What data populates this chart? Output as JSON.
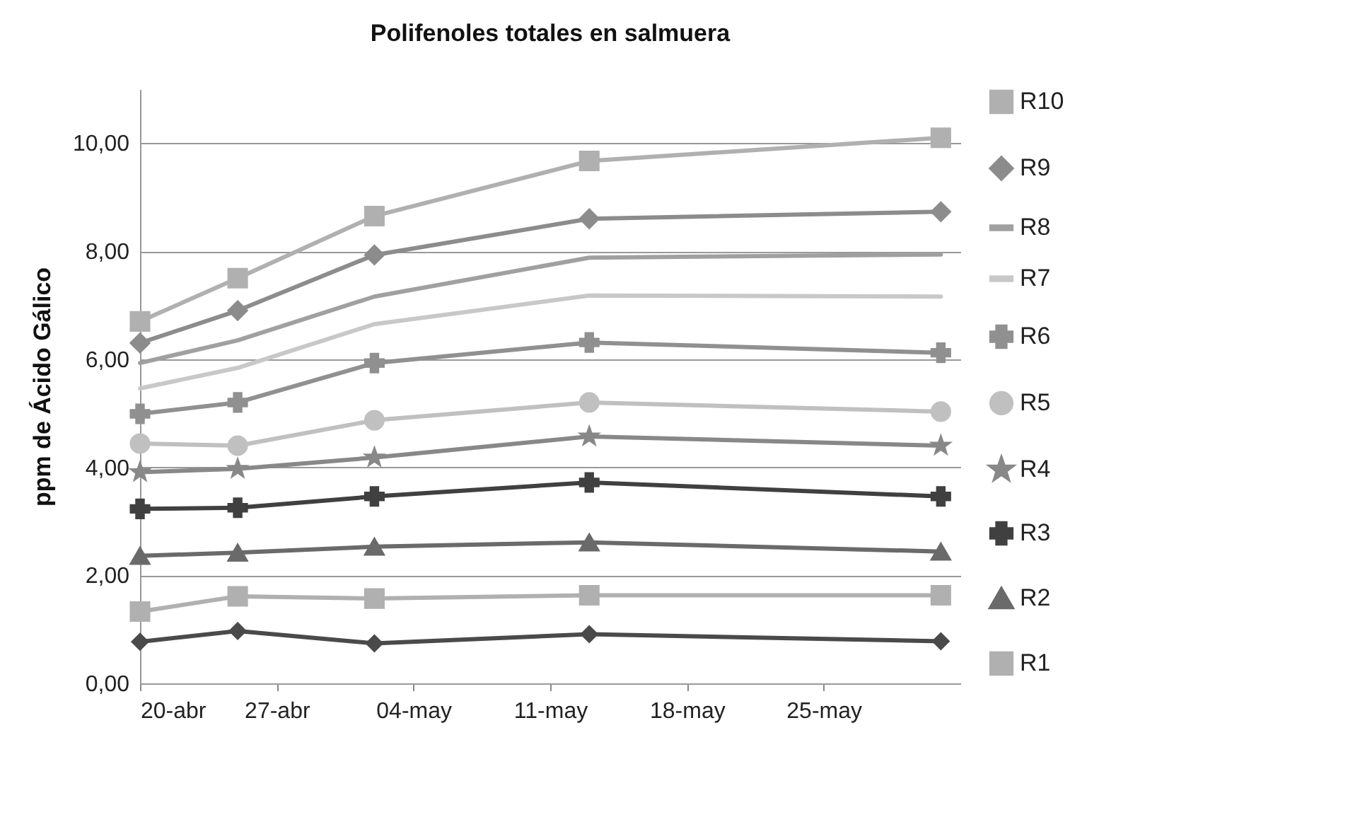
{
  "chart_data": {
    "type": "line",
    "title": "Polifenoles  totales en salmuera",
    "ylabel": "ppm de Ácido Gálico",
    "x": [
      "--04-20",
      "--04-25",
      "--05-02",
      "--05-13",
      "--05-31"
    ],
    "xlim": [
      "--04-20",
      "--06-01"
    ],
    "xticks": [
      {
        "value": "--04-20",
        "label": "20-abr"
      },
      {
        "value": "--04-27",
        "label": "27-abr"
      },
      {
        "value": "--05-04",
        "label": "04-may"
      },
      {
        "value": "--05-11",
        "label": "11-may"
      },
      {
        "value": "--05-18",
        "label": "18-may"
      },
      {
        "value": "--05-25",
        "label": "25-may"
      }
    ],
    "ylim": [
      0,
      11
    ],
    "yticks": [
      {
        "value": 0,
        "label": "0,00"
      },
      {
        "value": 2,
        "label": "2,00"
      },
      {
        "value": 4,
        "label": "4,00"
      },
      {
        "value": 6,
        "label": "6,00"
      },
      {
        "value": 8,
        "label": "8,00"
      },
      {
        "value": 10,
        "label": "10,00"
      }
    ],
    "grid": "y",
    "legend": "right",
    "series": [
      {
        "name": "R10",
        "color": "#b0b0b0",
        "marker": "square",
        "values": [
          6.7,
          7.5,
          8.65,
          9.67,
          10.1
        ]
      },
      {
        "name": "R9",
        "color": "#8c8c8c",
        "marker": "diamond",
        "values": [
          6.3,
          6.9,
          7.93,
          8.6,
          8.73
        ]
      },
      {
        "name": "R8",
        "color": "#a0a0a0",
        "marker": "none",
        "values": [
          5.93,
          6.35,
          7.16,
          7.88,
          7.94
        ]
      },
      {
        "name": "R7",
        "color": "#c8c8c8",
        "marker": "none",
        "values": [
          5.46,
          5.84,
          6.65,
          7.18,
          7.16
        ]
      },
      {
        "name": "R6",
        "color": "#909090",
        "marker": "cross",
        "values": [
          4.99,
          5.2,
          5.93,
          6.31,
          6.12
        ]
      },
      {
        "name": "R5",
        "color": "#c0c0c0",
        "marker": "circle",
        "values": [
          4.44,
          4.4,
          4.87,
          5.2,
          5.03
        ]
      },
      {
        "name": "R4",
        "color": "#888888",
        "marker": "star",
        "values": [
          3.91,
          3.97,
          4.18,
          4.57,
          4.4
        ]
      },
      {
        "name": "R3",
        "color": "#404040",
        "marker": "cross",
        "values": [
          3.23,
          3.25,
          3.46,
          3.72,
          3.46
        ]
      },
      {
        "name": "R2",
        "color": "#6a6a6a",
        "marker": "triangle",
        "values": [
          2.36,
          2.42,
          2.53,
          2.61,
          2.44
        ]
      },
      {
        "name": "R1",
        "color": "#b0b0b0",
        "marker": "square",
        "values": [
          1.33,
          1.61,
          1.57,
          1.63,
          1.63
        ]
      },
      {
        "color": "#4a4a4a",
        "marker": "diamond",
        "values": [
          0.77,
          0.97,
          0.74,
          0.91,
          0.78
        ]
      }
    ]
  }
}
